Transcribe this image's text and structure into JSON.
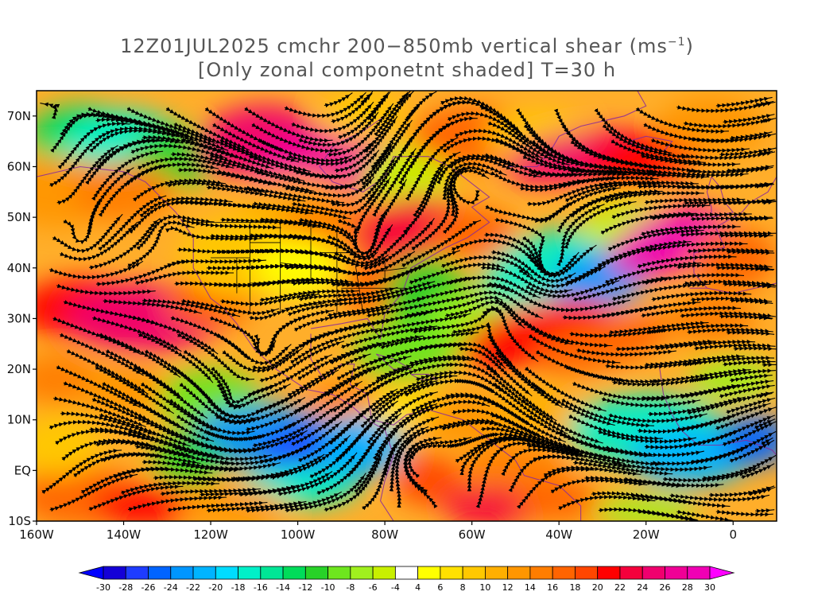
{
  "title": {
    "line1": "12Z01JUL2025 cmchr 200−850mb vertical shear (ms",
    "line1_sup": "−1",
    "line1_end": ")",
    "line2": "[Only zonal componetnt shaded] T=30 h"
  },
  "map": {
    "lon_range": [
      -160,
      10
    ],
    "lat_range": [
      -10,
      75
    ],
    "lat_labels": [
      {
        "lat": 70,
        "text": "70N"
      },
      {
        "lat": 60,
        "text": "60N"
      },
      {
        "lat": 50,
        "text": "50N"
      },
      {
        "lat": 40,
        "text": "40N"
      },
      {
        "lat": 30,
        "text": "30N"
      },
      {
        "lat": 20,
        "text": "20N"
      },
      {
        "lat": 10,
        "text": "10N"
      },
      {
        "lat": 0,
        "text": "EQ"
      },
      {
        "lat": -10,
        "text": "10S"
      }
    ],
    "lon_labels": [
      {
        "lon": -160,
        "text": "160W"
      },
      {
        "lon": -140,
        "text": "140W"
      },
      {
        "lon": -120,
        "text": "120W"
      },
      {
        "lon": -100,
        "text": "100W"
      },
      {
        "lon": -80,
        "text": "80W"
      },
      {
        "lon": -60,
        "text": "60W"
      },
      {
        "lon": -40,
        "text": "40W"
      },
      {
        "lon": -20,
        "text": "20W"
      },
      {
        "lon": 0,
        "text": "0"
      }
    ]
  },
  "colorbar": {
    "labels": [
      "-30",
      "-28",
      "-26",
      "-24",
      "-22",
      "-20",
      "-18",
      "-16",
      "-14",
      "-12",
      "-10",
      "-8",
      "-6",
      "-4",
      "4",
      "6",
      "8",
      "10",
      "12",
      "14",
      "16",
      "18",
      "20",
      "22",
      "24",
      "26",
      "28",
      "30"
    ],
    "colors": [
      "#1400d7",
      "#1e3cff",
      "#0064ff",
      "#0096ff",
      "#00b4ff",
      "#00dcff",
      "#00f0c8",
      "#00e696",
      "#00dc5a",
      "#28d228",
      "#6ee61e",
      "#a0f01e",
      "#c8f000",
      "#ffffff",
      "#ffff00",
      "#ffe100",
      "#ffc800",
      "#ffaf00",
      "#ff9600",
      "#ff7d00",
      "#ff6400",
      "#ff4600",
      "#ff0000",
      "#f5003c",
      "#f0006e",
      "#f00096",
      "#f000b4"
    ],
    "under_color": "#0000ff",
    "over_color": "#ff00ff"
  }
}
